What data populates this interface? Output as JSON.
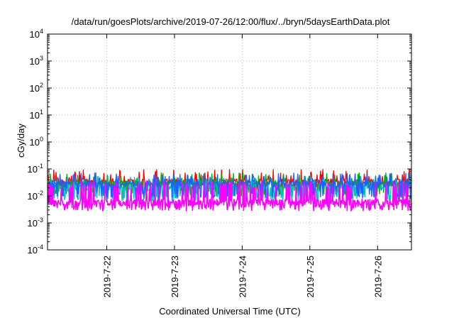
{
  "chart_data": {
    "type": "line",
    "title": "/data/run/goesPlots/archive/2019-07-26/12:00/flux/../bryn/5daysEarthData.plot",
    "xlabel": "Coordinated Universal Time (UTC)",
    "ylabel": "cGy/day",
    "yscale": "log",
    "ylim": [
      0.0001,
      10000
    ],
    "xlim": [
      "2019-07-21T03:00",
      "2019-07-26T12:00"
    ],
    "grid": true,
    "legend": "none",
    "y_ticks": [
      {
        "base": "10",
        "exp": "-4",
        "value": 0.0001
      },
      {
        "base": "10",
        "exp": "-3",
        "value": 0.001
      },
      {
        "base": "10",
        "exp": "-2",
        "value": 0.01
      },
      {
        "base": "10",
        "exp": "-1",
        "value": 0.1
      },
      {
        "base": "10",
        "exp": "0",
        "value": 1
      },
      {
        "base": "10",
        "exp": "1",
        "value": 10
      },
      {
        "base": "10",
        "exp": "2",
        "value": 100
      },
      {
        "base": "10",
        "exp": "3",
        "value": 1000
      },
      {
        "base": "10",
        "exp": "4",
        "value": 10000
      }
    ],
    "x_ticks": [
      {
        "label": "2019-7-22",
        "date": "2019-07-22T00:00"
      },
      {
        "label": "2019-7-23",
        "date": "2019-07-23T00:00"
      },
      {
        "label": "2019-7-24",
        "date": "2019-07-24T00:00"
      },
      {
        "label": "2019-7-25",
        "date": "2019-07-25T00:00"
      },
      {
        "label": "2019-7-26",
        "date": "2019-07-26T00:00"
      }
    ],
    "series": [
      {
        "color": "#ff0000",
        "baseline": 0.035,
        "low": 0.018,
        "high": 0.08,
        "spikiness": 0.35
      },
      {
        "color": "#00b000",
        "baseline": 0.03,
        "low": 0.012,
        "high": 0.06,
        "spikiness": 0.35
      },
      {
        "color": "#00c0c0",
        "baseline": 0.022,
        "low": 0.008,
        "high": 0.045,
        "spikiness": 0.4
      },
      {
        "color": "#1f5fff",
        "baseline": 0.028,
        "low": 0.01,
        "high": 0.06,
        "spikiness": 0.45
      },
      {
        "color": "#ff00ff",
        "baseline": 0.006,
        "low": 0.0035,
        "high": 0.03,
        "spikiness": 0.55
      }
    ]
  }
}
